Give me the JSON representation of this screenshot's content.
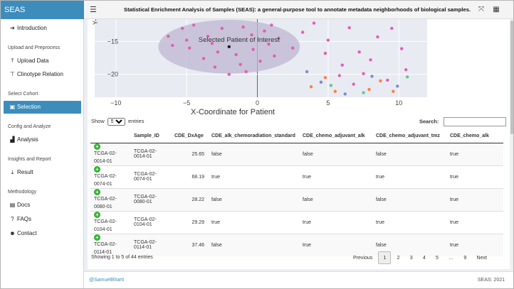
{
  "app": {
    "brand": "SEAS",
    "title": "Statistical Enrichment Analysis of Samples (SEAS): a general-purpose tool to annotate metadata neighborhoods of biological samples."
  },
  "header": {
    "menu_icon": "hamburger-icon",
    "expand_icon": "expand-icon",
    "grid_icon": "grid-icon"
  },
  "sidebar": {
    "intro": {
      "label": "Introduction",
      "icon": "arrow-right-icon"
    },
    "sec_upload": "Upload and Preprocess",
    "upload": {
      "label": "Upload Data",
      "icon": "upload-icon"
    },
    "clino": {
      "label": "Clinotype Relation",
      "icon": "sitemap-icon"
    },
    "sec_cohort": "Select Cohort",
    "selection": {
      "label": "Selection",
      "icon": "image-icon"
    },
    "sec_config": "Config and Analyze",
    "analysis": {
      "label": "Analysis",
      "icon": "chart-icon"
    },
    "sec_insights": "Insights and Report",
    "result": {
      "label": "Result",
      "icon": "download-icon"
    },
    "sec_method": "Methodology",
    "docs": {
      "label": "Docs",
      "icon": "docs-icon"
    },
    "faqs": {
      "label": "FAQs",
      "icon": "question-icon"
    },
    "contact": {
      "label": "Contact",
      "icon": "users-icon"
    }
  },
  "plot": {
    "xlabel": "X-Coordinate for Patient",
    "ylabel_fragment": "Y-",
    "annotation": "Selected Patient of Interest",
    "xticks": [
      "−10",
      "−5",
      "0",
      "5",
      "10"
    ],
    "yticks": [
      "−15",
      "−20"
    ]
  },
  "chart_data": {
    "type": "scatter",
    "xlabel": "X-Coordinate for Patient",
    "ylabel": "Y-",
    "xlim": [
      -11.5,
      12
    ],
    "ylim": [
      -23.5,
      -11.6
    ],
    "highlight_point": {
      "x": -2.0,
      "y": -15.8,
      "label": "Selected Patient of Interest"
    },
    "highlight_ellipse": {
      "cx": -2.0,
      "cy": -15.8,
      "rx": 5.0,
      "ry": 4.1
    },
    "series": [
      {
        "color": "#e05fb5",
        "points": [
          [
            -4.5,
            -12.5
          ],
          [
            -2.5,
            -13.0
          ],
          [
            -1.0,
            -12.8
          ],
          [
            0.5,
            -13.4
          ],
          [
            -3.5,
            -14.2
          ],
          [
            -5.0,
            -14.8
          ],
          [
            -6.0,
            -15.6
          ],
          [
            -4.8,
            -16.0
          ],
          [
            -3.2,
            -15.3
          ],
          [
            -2.8,
            -16.6
          ],
          [
            -1.5,
            -17.0
          ],
          [
            -0.3,
            -16.2
          ],
          [
            0.8,
            -15.4
          ],
          [
            1.5,
            -14.5
          ],
          [
            -3.8,
            -17.6
          ],
          [
            -1.2,
            -18.5
          ],
          [
            0.2,
            -18.0
          ],
          [
            1.2,
            -17.2
          ],
          [
            -0.8,
            -19.6
          ],
          [
            -2.0,
            -20.0
          ],
          [
            2.5,
            -16.0
          ],
          [
            -5.3,
            -13.0
          ],
          [
            -6.3,
            -14.2
          ],
          [
            -0.4,
            -14.0
          ],
          [
            1.0,
            -12.5
          ],
          [
            -3.0,
            -18.9
          ],
          [
            3.2,
            -13.6
          ],
          [
            5.0,
            -14.8
          ],
          [
            6.5,
            -12.9
          ],
          [
            7.2,
            -16.6
          ],
          [
            8.5,
            -14.3
          ],
          [
            9.5,
            -13.0
          ],
          [
            10.2,
            -16.1
          ],
          [
            8.0,
            -17.8
          ],
          [
            6.0,
            -18.6
          ],
          [
            4.8,
            -16.8
          ],
          [
            10.5,
            -19.3
          ],
          [
            9.2,
            -20.9
          ],
          [
            7.5,
            -19.9
          ],
          [
            4.0,
            -12.2
          ],
          [
            5.8,
            -20.2
          ],
          [
            6.8,
            -21.5
          ]
        ]
      },
      {
        "color": "#ff7f3f",
        "points": [
          [
            3.8,
            -21.9
          ],
          [
            5.5,
            -22.6
          ],
          [
            7.9,
            -22.3
          ],
          [
            8.7,
            -21.0
          ],
          [
            9.6,
            -22.6
          ],
          [
            4.8,
            -20.5
          ]
        ]
      },
      {
        "color": "#7d8bd3",
        "points": [
          [
            4.5,
            -21.2
          ],
          [
            6.2,
            -23.0
          ],
          [
            8.1,
            -20.3
          ],
          [
            9.9,
            -21.8
          ],
          [
            3.5,
            -19.6
          ]
        ]
      },
      {
        "color": "#6cc58a",
        "points": [
          [
            5.2,
            -21.7
          ],
          [
            7.5,
            -22.8
          ],
          [
            10.6,
            -20.4
          ]
        ]
      }
    ]
  },
  "table": {
    "show_label": "Show",
    "entries_label": "entries",
    "page_size": "5",
    "search_label": "Search:",
    "search_value": "",
    "columns": [
      "",
      "Sample_ID",
      "CDE_DxAge",
      "CDE_alk_chemoradiation_standard",
      "CDE_chemo_adjuvant_alk",
      "CDE_chemo_adjuvant_tmz",
      "CDE_chemo_alk"
    ],
    "rows": [
      [
        "TCGA-02-0014-01",
        "TCGA-02-0014-01",
        "25.65",
        "false",
        "false",
        "false",
        "true"
      ],
      [
        "TCGA-02-0074-01",
        "TCGA-02-0074-01",
        "68.19",
        "true",
        "true",
        "true",
        "true"
      ],
      [
        "TCGA-02-0080-01",
        "TCGA-02-0080-01",
        "28.22",
        "false",
        "false",
        "false",
        "true"
      ],
      [
        "TCGA-02-0104-01",
        "TCGA-02-0104-01",
        "29.29",
        "true",
        "true",
        "true",
        "true"
      ],
      [
        "TCGA-02-0114-01",
        "TCGA-02-0114-01",
        "37.46",
        "false",
        "true",
        "false",
        "true"
      ]
    ],
    "info": "Showing 1 to 5 of 44 entries",
    "pager": [
      "Previous",
      "1",
      "2",
      "3",
      "4",
      "5",
      "…",
      "9",
      "Next"
    ]
  },
  "footer": {
    "left": "@SamuelBharti",
    "right": "SEAS: 2021"
  }
}
